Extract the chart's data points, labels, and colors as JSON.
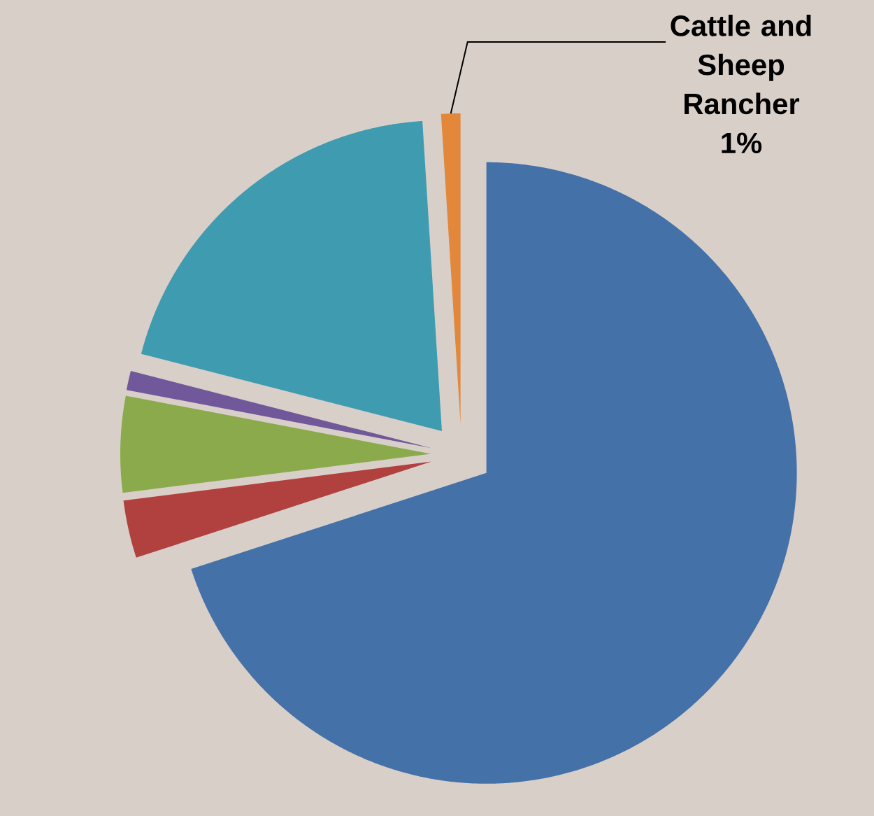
{
  "chart_data": {
    "type": "pie",
    "categories": [
      null,
      null,
      null,
      null,
      null,
      "Cattle and Sheep Rancher"
    ],
    "values": [
      70,
      3,
      5,
      1,
      20,
      1
    ],
    "value_labels": [
      null,
      null,
      null,
      null,
      null,
      "1%"
    ],
    "colors": [
      "#4371a8",
      "#b0413e",
      "#8aaa4b",
      "#71589a",
      "#3e9bb0",
      "#e3883a"
    ]
  }
}
